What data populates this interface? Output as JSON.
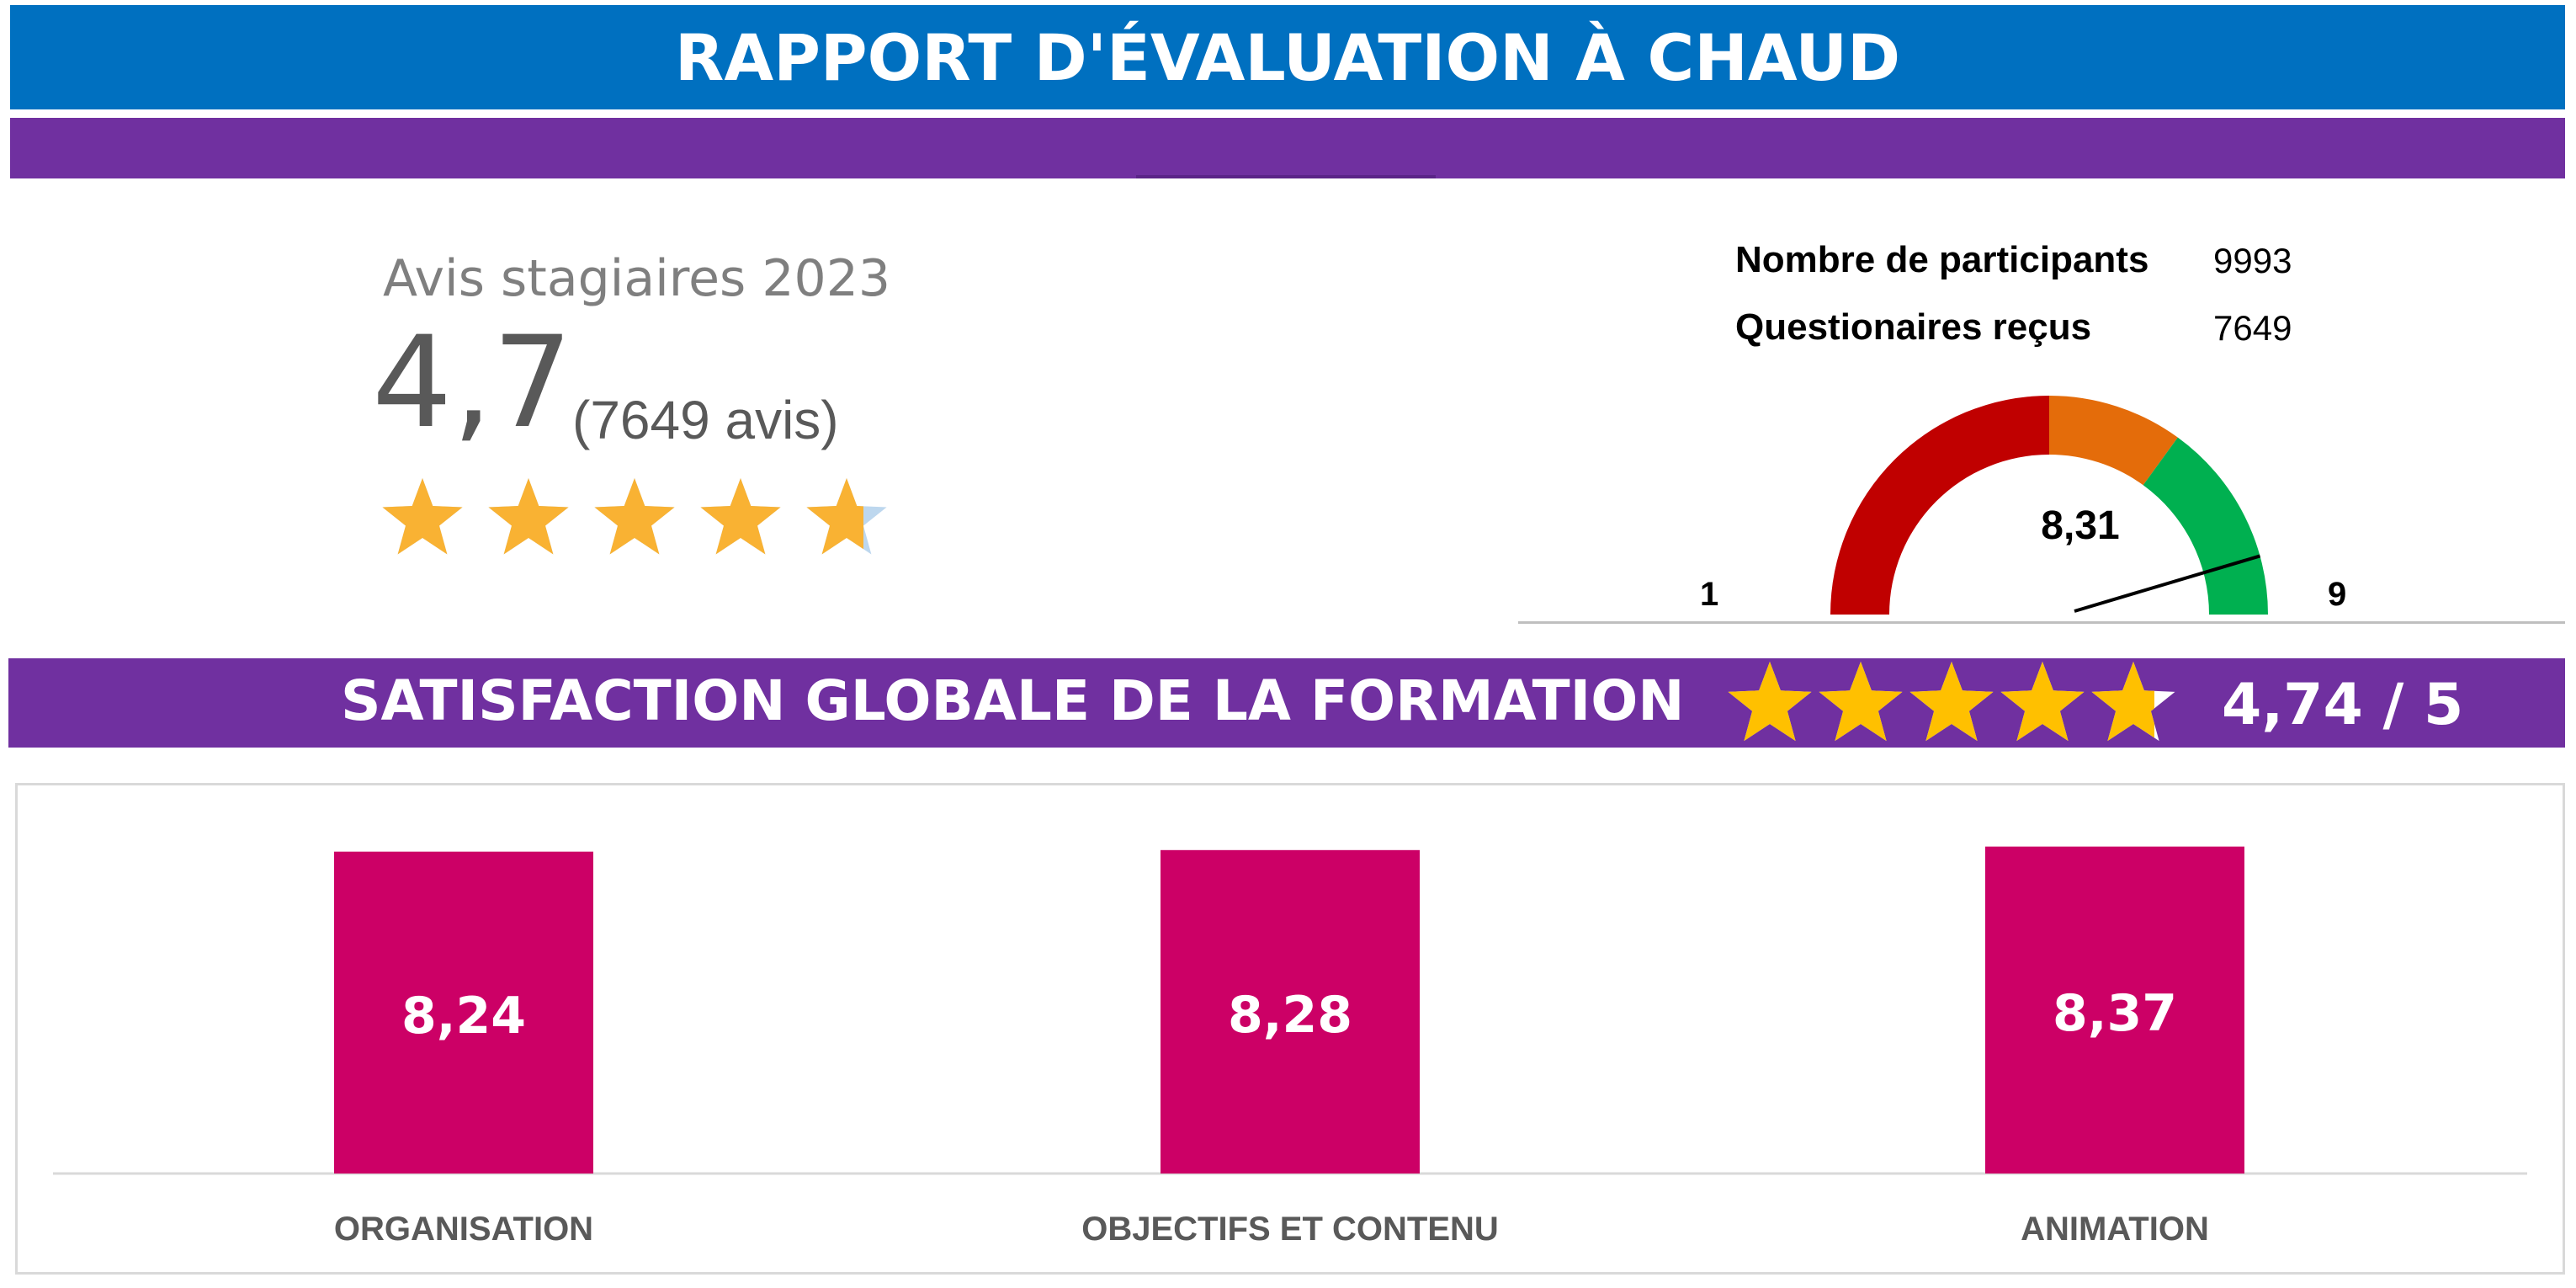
{
  "header": {
    "title": "RAPPORT D'ÉVALUATION À CHAUD"
  },
  "summary": {
    "heading": "Avis stagiaires 2023",
    "score": "4,7",
    "count_label": "(7649 avis)",
    "star_rating": 4.7,
    "star_color": "#f9b233"
  },
  "stats": {
    "participants_label": "Nombre de participants",
    "participants_value": "9993",
    "questionnaires_label": "Questionaires reçus",
    "questionnaires_value": "7649"
  },
  "gauge": {
    "value": 8.31,
    "value_label": "8,31",
    "min_label": "1",
    "max_label": "9",
    "min": 1,
    "max": 9,
    "segments": [
      {
        "from": 1,
        "to": 5,
        "color": "#c00000"
      },
      {
        "from": 5,
        "to": 6.6,
        "color": "#e46c0a"
      },
      {
        "from": 6.6,
        "to": 9,
        "color": "#00b050"
      }
    ]
  },
  "satisfaction": {
    "title": "SATISFACTION GLOBALE DE LA FORMATION",
    "score_label": "4,74 / 5",
    "star_rating": 4.74,
    "star_color": "#ffc000"
  },
  "chart_data": {
    "type": "bar",
    "categories": [
      "ORGANISATION",
      "OBJECTIFS ET CONTENU",
      "ANIMATION"
    ],
    "values": [
      8.24,
      8.28,
      8.37
    ],
    "value_labels": [
      "8,24",
      "8,28",
      "8,37"
    ],
    "title": "",
    "xlabel": "",
    "ylabel": "",
    "ylim": [
      0,
      10
    ],
    "bar_color": "#cc0066",
    "grid": false
  },
  "colors": {
    "title_bar": "#0070c0",
    "purple": "#7030a0"
  }
}
